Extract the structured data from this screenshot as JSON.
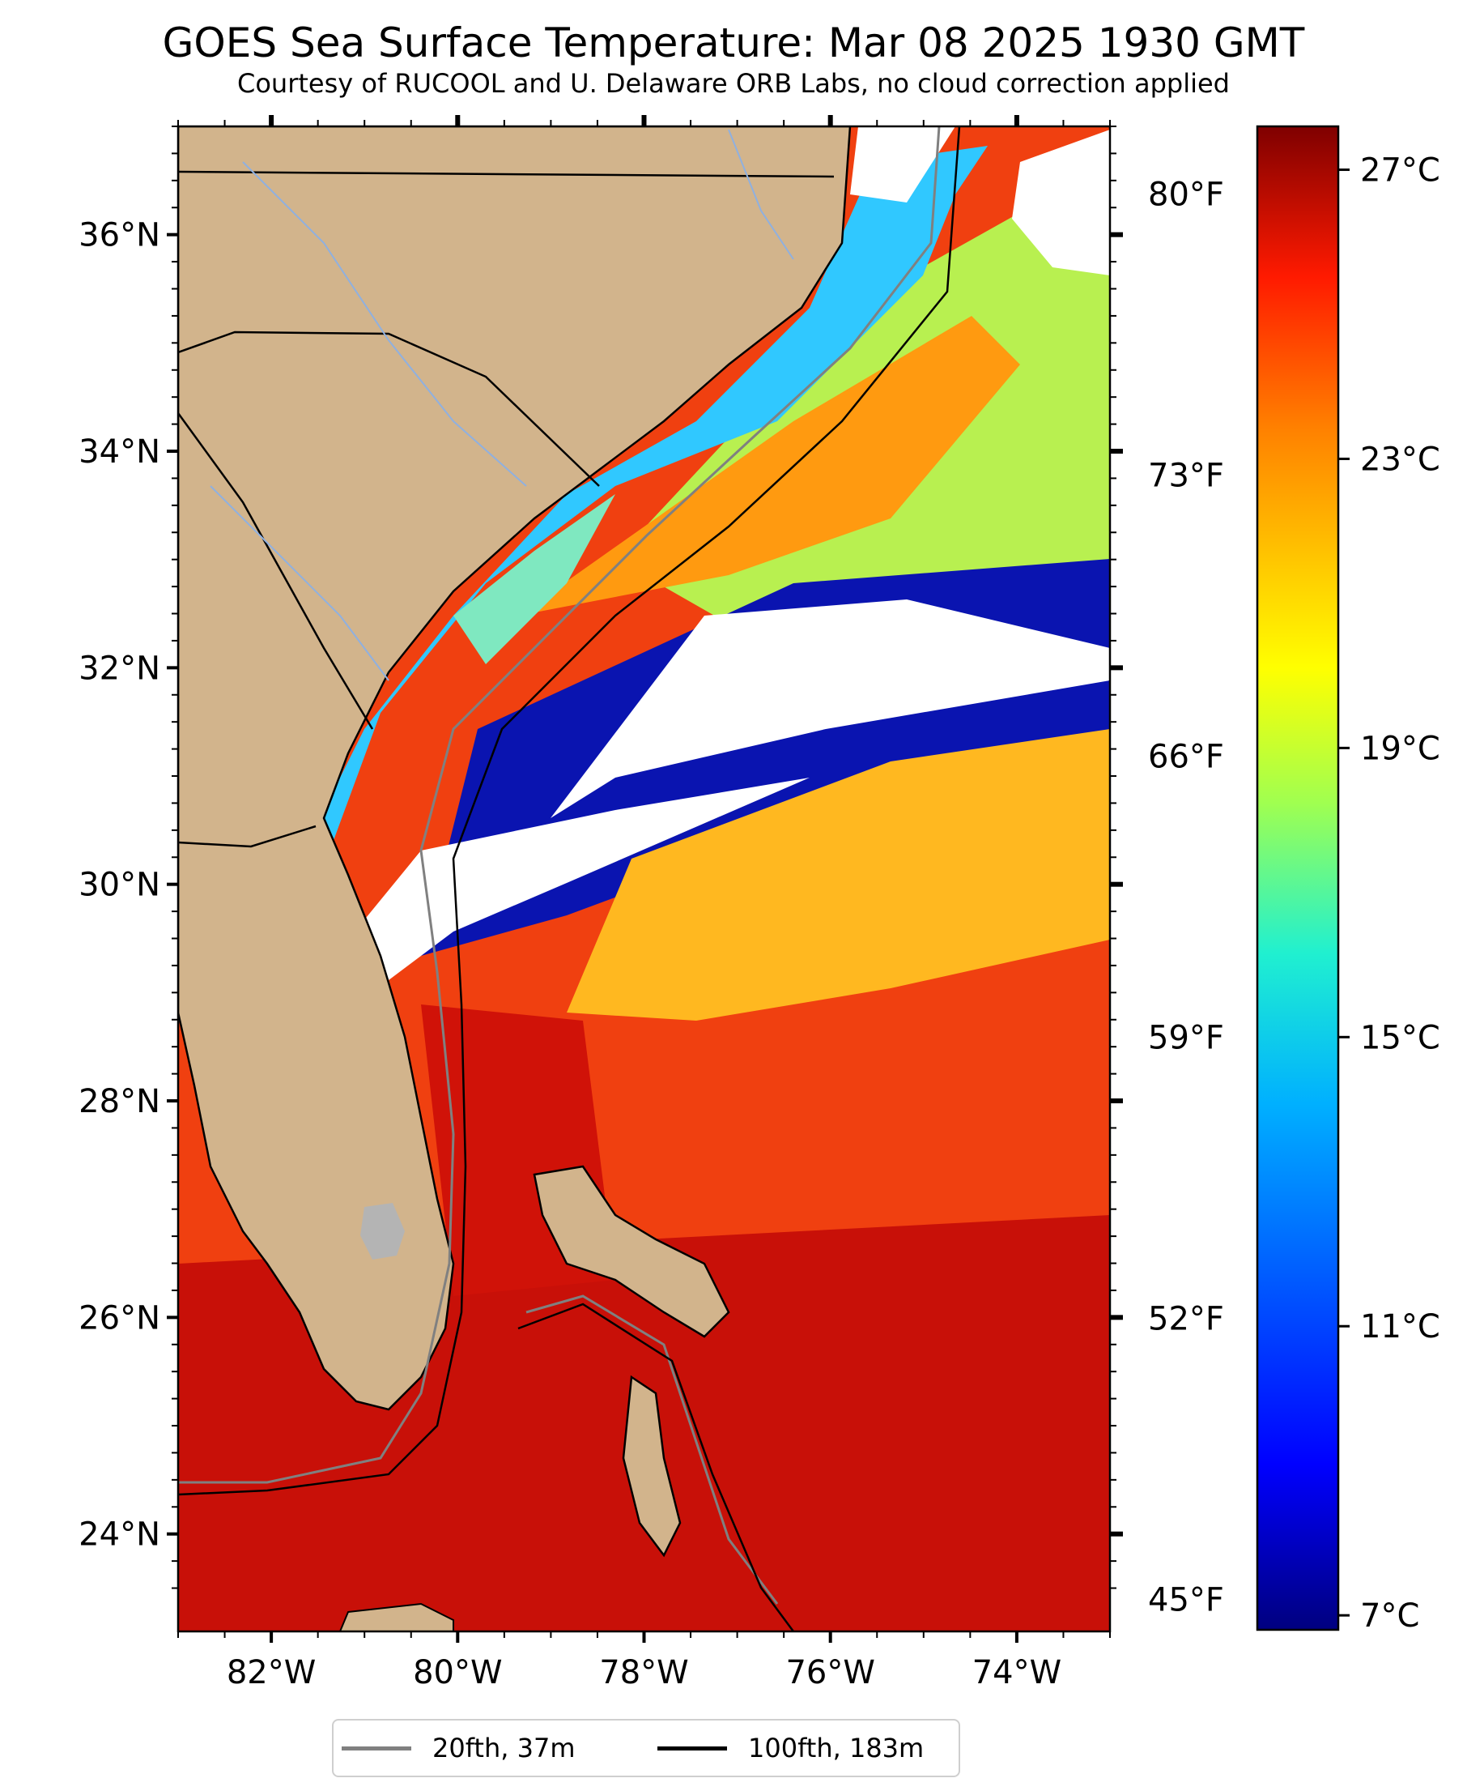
{
  "title": "GOES Sea Surface Temperature: Mar 08 2025 1930 GMT",
  "subtitle": "Courtesy of RUCOOL and U. Delaware ORB Labs, no cloud correction applied",
  "map": {
    "lon_range": [
      -83,
      -73
    ],
    "lat_range": [
      23.1,
      37
    ],
    "lon_ticks": [
      "82°W",
      "80°W",
      "78°W",
      "76°W",
      "74°W"
    ],
    "lat_ticks": [
      "36°N",
      "34°N",
      "32°N",
      "30°N",
      "28°N",
      "26°N",
      "24°N"
    ],
    "land_color": "#d2b48c",
    "cloud_color": "#ffffff"
  },
  "fahrenheit_ticks": [
    "80°F",
    "73°F",
    "66°F",
    "59°F",
    "52°F",
    "45°F"
  ],
  "colorbar": {
    "ticks": [
      "27°C",
      "23°C",
      "19°C",
      "15°C",
      "11°C",
      "7°C"
    ],
    "range_c": [
      6.8,
      27.6
    ],
    "colormap": "jet"
  },
  "legend": {
    "items": [
      {
        "label": "20fth, 37m",
        "color": "#808080"
      },
      {
        "label": "100fth, 183m",
        "color": "#000000"
      }
    ]
  }
}
